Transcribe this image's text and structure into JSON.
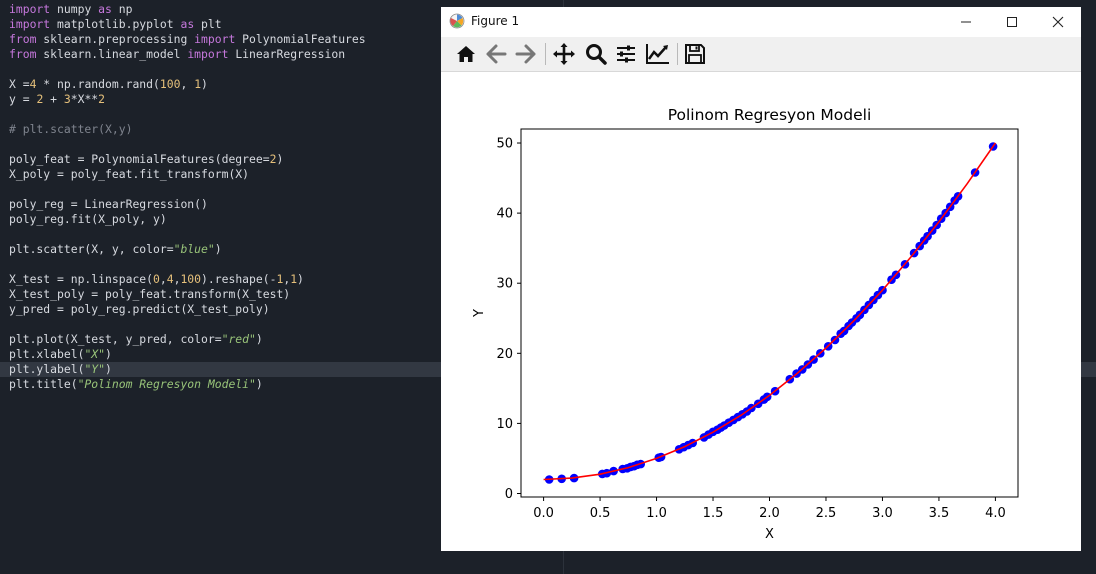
{
  "editor": {
    "active_line": 24,
    "lines": [
      [
        [
          "kw",
          "import"
        ],
        [
          "op",
          " numpy "
        ],
        [
          "kw",
          "as"
        ],
        [
          "op",
          " np"
        ]
      ],
      [
        [
          "kw",
          "import"
        ],
        [
          "op",
          " matplotlib.pyplot "
        ],
        [
          "kw",
          "as"
        ],
        [
          "op",
          " plt"
        ]
      ],
      [
        [
          "kw",
          "from"
        ],
        [
          "op",
          " sklearn.preprocessing "
        ],
        [
          "kw",
          "import"
        ],
        [
          "op",
          " PolynomialFeatures"
        ]
      ],
      [
        [
          "kw",
          "from"
        ],
        [
          "op",
          " sklearn.linear_model "
        ],
        [
          "kw",
          "import"
        ],
        [
          "op",
          " LinearRegression"
        ]
      ],
      [],
      [
        [
          "op",
          "X ="
        ],
        [
          "num",
          "4"
        ],
        [
          "op",
          " * np.random.rand("
        ],
        [
          "num",
          "100"
        ],
        [
          "op",
          ", "
        ],
        [
          "num",
          "1"
        ],
        [
          "op",
          ")"
        ]
      ],
      [
        [
          "op",
          "y = "
        ],
        [
          "num",
          "2"
        ],
        [
          "op",
          " + "
        ],
        [
          "num",
          "3"
        ],
        [
          "op",
          "*X**"
        ],
        [
          "num",
          "2"
        ]
      ],
      [],
      [
        [
          "cm",
          "# plt.scatter(X,y)"
        ]
      ],
      [],
      [
        [
          "op",
          "poly_feat = PolynomialFeatures(degree="
        ],
        [
          "num",
          "2"
        ],
        [
          "op",
          ")"
        ]
      ],
      [
        [
          "op",
          "X_poly = poly_feat.fit_transform(X)"
        ]
      ],
      [],
      [
        [
          "op",
          "poly_reg = LinearRegression()"
        ]
      ],
      [
        [
          "op",
          "poly_reg.fit(X_poly, y)"
        ]
      ],
      [],
      [
        [
          "op",
          "plt.scatter(X, y, color="
        ],
        [
          "str",
          "\"blue\""
        ],
        [
          "op",
          ")"
        ]
      ],
      [],
      [
        [
          "op",
          "X_test = np.linspace("
        ],
        [
          "num",
          "0"
        ],
        [
          "op",
          ","
        ],
        [
          "num",
          "4"
        ],
        [
          "op",
          ","
        ],
        [
          "num",
          "100"
        ],
        [
          "op",
          ").reshape(-"
        ],
        [
          "num",
          "1"
        ],
        [
          "op",
          ","
        ],
        [
          "num",
          "1"
        ],
        [
          "op",
          ")"
        ]
      ],
      [
        [
          "op",
          "X_test_poly = poly_feat.transform(X_test)"
        ]
      ],
      [
        [
          "op",
          "y_pred = poly_reg.predict(X_test_poly)"
        ]
      ],
      [],
      [
        [
          "op",
          "plt.plot(X_test, y_pred, color="
        ],
        [
          "str",
          "\"red\""
        ],
        [
          "op",
          ")"
        ]
      ],
      [
        [
          "op",
          "plt.xlabel("
        ],
        [
          "str",
          "\"X\""
        ],
        [
          "op",
          ")"
        ]
      ],
      [
        [
          "op",
          "plt.ylabel("
        ],
        [
          "str",
          "\"Y\""
        ],
        [
          "op",
          ")"
        ]
      ],
      [
        [
          "op",
          "plt.title("
        ],
        [
          "str",
          "\"Polinom Regresyon Modeli\""
        ],
        [
          "op",
          ")"
        ]
      ]
    ]
  },
  "window": {
    "title": "Figure 1",
    "minimize_icon": "minimize-icon",
    "maximize_icon": "maximize-icon",
    "close_icon": "close-icon"
  },
  "toolbar": {
    "buttons": [
      "home-icon",
      "back-arrow-icon",
      "forward-arrow-icon",
      "pan-icon",
      "zoom-icon",
      "subplots-icon",
      "edit-axis-icon",
      "save-icon"
    ]
  },
  "chart_data": {
    "type": "scatter",
    "title": "Polinom Regresyon Modeli",
    "xlabel": "X",
    "ylabel": "Y",
    "xlim": [
      -0.2,
      4.2
    ],
    "ylim": [
      -0.5,
      52.0
    ],
    "xticks": [
      0.0,
      0.5,
      1.0,
      1.5,
      2.0,
      2.5,
      3.0,
      3.5,
      4.0
    ],
    "xtick_labels": [
      "0.0",
      "0.5",
      "1.0",
      "1.5",
      "2.0",
      "2.5",
      "3.0",
      "3.5",
      "4.0"
    ],
    "yticks": [
      0,
      10,
      20,
      30,
      40,
      50
    ],
    "ytick_labels": [
      "0",
      "10",
      "20",
      "30",
      "40",
      "50"
    ],
    "grid": false,
    "series": [
      {
        "kind": "scatter",
        "color": "#0000ff",
        "x": [
          0.05,
          0.16,
          0.27,
          0.52,
          0.56,
          0.62,
          0.7,
          0.74,
          0.77,
          0.8,
          0.83,
          0.86,
          1.02,
          1.04,
          1.2,
          1.24,
          1.28,
          1.32,
          1.42,
          1.46,
          1.5,
          1.54,
          1.57,
          1.6,
          1.64,
          1.68,
          1.72,
          1.76,
          1.8,
          1.84,
          1.9,
          1.95,
          1.98,
          2.05,
          2.18,
          2.24,
          2.29,
          2.34,
          2.39,
          2.45,
          2.52,
          2.58,
          2.63,
          2.66,
          2.7,
          2.73,
          2.77,
          2.8,
          2.84,
          2.88,
          2.92,
          2.96,
          3.0,
          3.08,
          3.12,
          3.2,
          3.28,
          3.33,
          3.37,
          3.4,
          3.44,
          3.48,
          3.52,
          3.56,
          3.6,
          3.64,
          3.67,
          3.82,
          3.98
        ],
        "y": [
          2.0,
          2.1,
          2.2,
          2.8,
          2.9,
          3.2,
          3.5,
          3.6,
          3.8,
          3.9,
          4.1,
          4.2,
          5.1,
          5.2,
          6.3,
          6.6,
          6.9,
          7.2,
          8.0,
          8.4,
          8.8,
          9.1,
          9.4,
          9.7,
          10.1,
          10.5,
          10.9,
          11.3,
          11.7,
          12.2,
          12.8,
          13.4,
          13.8,
          14.6,
          16.3,
          17.1,
          17.7,
          18.4,
          19.1,
          20.0,
          21.0,
          21.9,
          22.8,
          23.2,
          23.9,
          24.4,
          25.0,
          25.5,
          26.2,
          26.9,
          27.6,
          28.3,
          29.0,
          30.5,
          31.2,
          32.7,
          34.3,
          35.3,
          36.1,
          36.7,
          37.5,
          38.3,
          39.2,
          40.0,
          40.9,
          41.8,
          42.4,
          45.8,
          49.5
        ]
      },
      {
        "kind": "line",
        "color": "#ff0000",
        "x": [
          0.0,
          0.25,
          0.5,
          0.75,
          1.0,
          1.25,
          1.5,
          1.75,
          2.0,
          2.25,
          2.5,
          2.75,
          3.0,
          3.25,
          3.5,
          3.75,
          4.0
        ],
        "y": [
          2.0,
          2.19,
          2.75,
          3.69,
          5.0,
          6.69,
          8.75,
          11.19,
          14.0,
          17.19,
          20.75,
          24.69,
          29.0,
          33.69,
          38.75,
          44.19,
          50.0
        ]
      }
    ]
  }
}
